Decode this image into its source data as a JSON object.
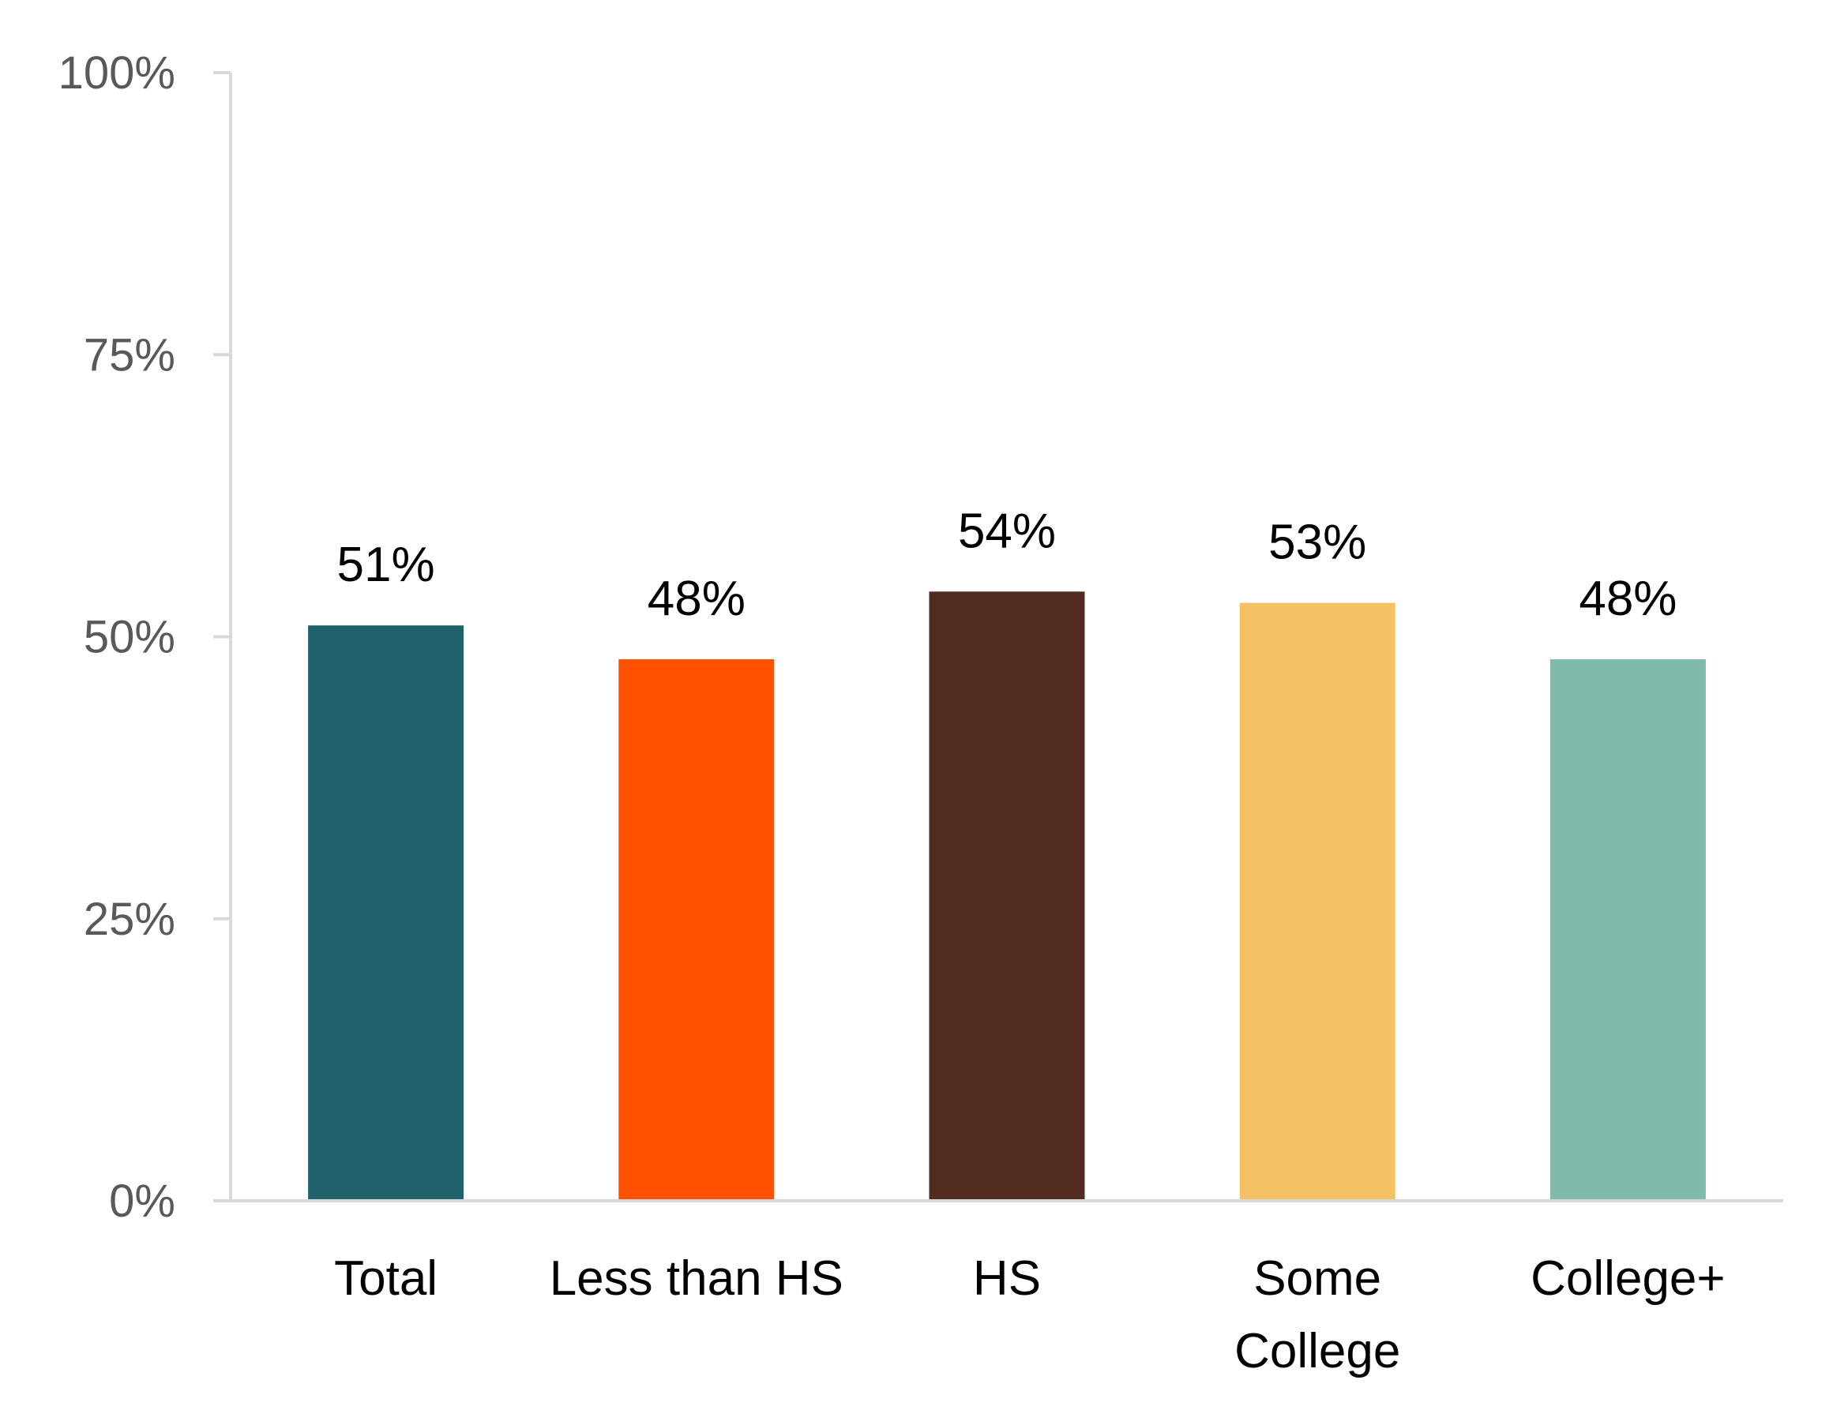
{
  "chart_data": {
    "type": "bar",
    "title": "",
    "xlabel": "",
    "ylabel": "",
    "categories": [
      "Total",
      "Less than HS",
      "HS",
      "Some College",
      "College+"
    ],
    "values": [
      51,
      48,
      54,
      53,
      48
    ],
    "value_labels": [
      "51%",
      "48%",
      "54%",
      "53%",
      "48%"
    ],
    "bar_colors": [
      "#1F626B",
      "#FF5100",
      "#512B1F",
      "#F4C165",
      "#80BAAC"
    ],
    "ylim": [
      0,
      100
    ],
    "yticks": [
      0,
      25,
      50,
      75,
      100
    ],
    "ytick_labels": [
      "0%",
      "25%",
      "50%",
      "75%",
      "100%"
    ],
    "grid": false,
    "legend": "none",
    "axis_color": "#D9D9D9"
  }
}
